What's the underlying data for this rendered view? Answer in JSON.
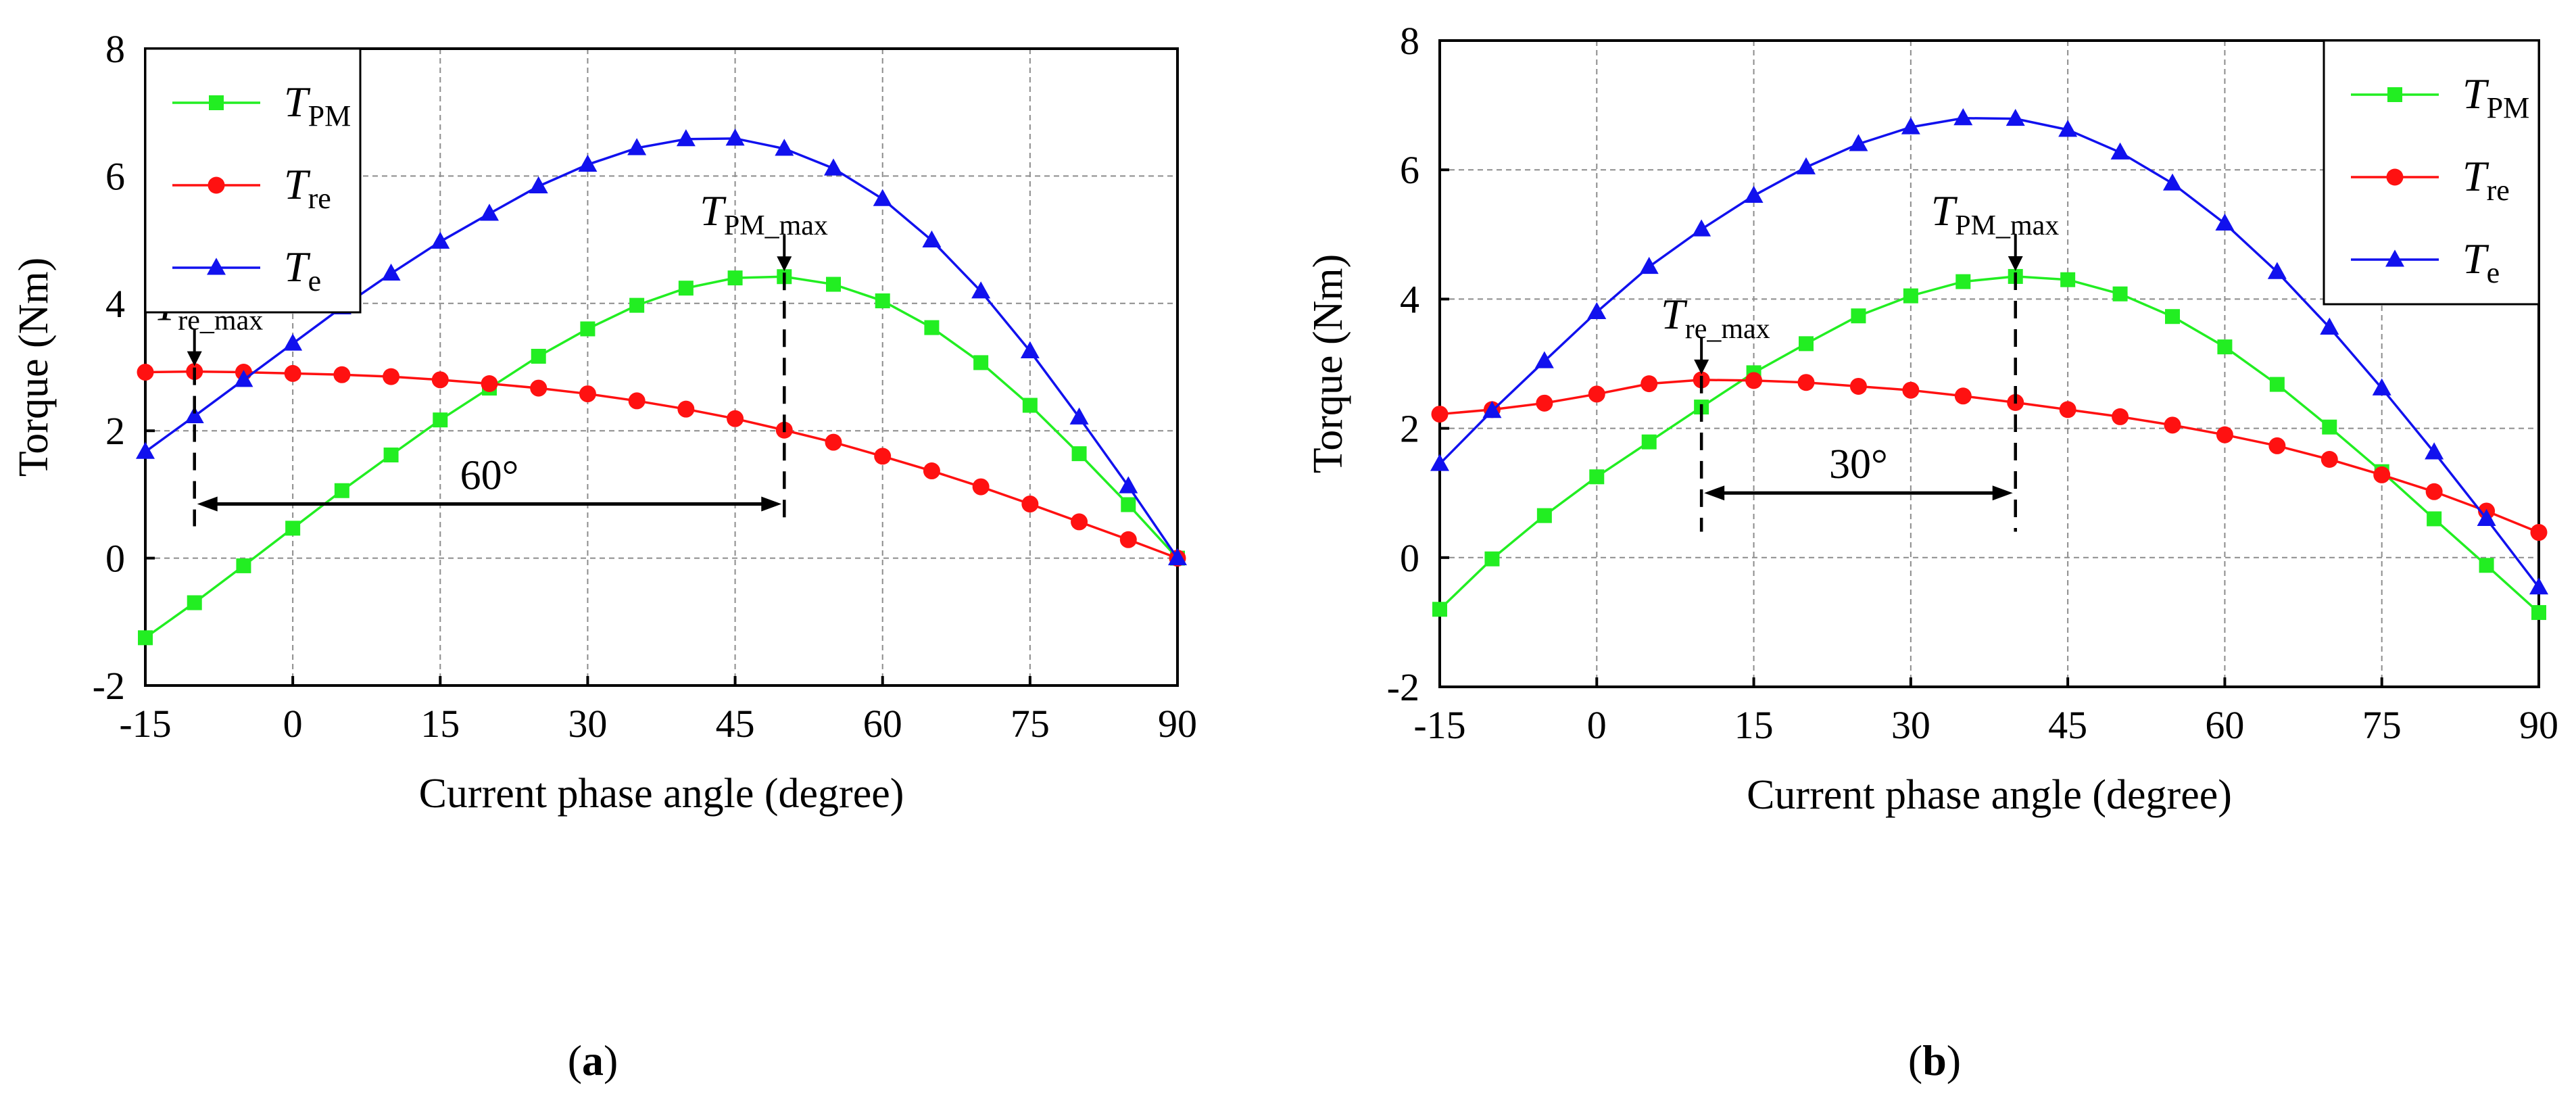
{
  "chart_data": [
    {
      "id": "a",
      "type": "line",
      "caption_prefix": "(",
      "caption_letter": "a",
      "caption_suffix": ")",
      "xlabel": "Current phase angle (degree)",
      "ylabel": "Torque (Nm)",
      "xlim": [
        -15,
        90
      ],
      "ylim": [
        -2,
        8
      ],
      "xticks": [
        -15,
        0,
        15,
        30,
        45,
        60,
        75,
        90
      ],
      "yticks": [
        -2,
        0,
        2,
        4,
        6,
        8
      ],
      "legend_position": "top-left",
      "x": [
        -15,
        -10,
        -5,
        0,
        5,
        10,
        15,
        20,
        25,
        30,
        35,
        40,
        45,
        50,
        55,
        60,
        65,
        70,
        75,
        80,
        85,
        90
      ],
      "series": [
        {
          "key": "pm",
          "name_main": "T",
          "name_sub": "PM",
          "color": "#22ee22",
          "marker": "square",
          "values": [
            -1.25,
            -0.7,
            -0.12,
            0.47,
            1.06,
            1.62,
            2.17,
            2.67,
            3.17,
            3.6,
            3.97,
            4.24,
            4.4,
            4.42,
            4.3,
            4.04,
            3.62,
            3.07,
            2.4,
            1.64,
            0.84,
            0.0
          ]
        },
        {
          "key": "re",
          "name_main": "T",
          "name_sub": "re",
          "color": "#ff1111",
          "marker": "circle",
          "values": [
            2.92,
            2.93,
            2.92,
            2.9,
            2.88,
            2.85,
            2.8,
            2.74,
            2.67,
            2.58,
            2.47,
            2.34,
            2.19,
            2.01,
            1.82,
            1.6,
            1.37,
            1.12,
            0.85,
            0.57,
            0.29,
            0.0
          ]
        },
        {
          "key": "e",
          "name_main": "T",
          "name_sub": "e",
          "color": "#1111ee",
          "marker": "triangle",
          "values": [
            1.67,
            2.23,
            2.8,
            3.37,
            3.94,
            4.47,
            4.97,
            5.41,
            5.84,
            6.18,
            6.44,
            6.58,
            6.59,
            6.43,
            6.12,
            5.64,
            4.99,
            4.19,
            3.25,
            2.21,
            1.13,
            0.0
          ]
        }
      ],
      "annotations": [
        {
          "key": "tre",
          "main": "T",
          "sub": "re_max",
          "x": -10,
          "y": 2.93
        },
        {
          "key": "tpm",
          "main": "T",
          "sub": "PM_max",
          "x": 50,
          "y": 4.42
        }
      ],
      "span": {
        "x1": -10,
        "x2": 50,
        "y": 0.85,
        "label": "60°",
        "line_bottom": 0.5
      }
    },
    {
      "id": "b",
      "type": "line",
      "caption_prefix": "(",
      "caption_letter": "b",
      "caption_suffix": ")",
      "xlabel": "Current phase angle (degree)",
      "ylabel": "Torque (Nm)",
      "xlim": [
        -15,
        90
      ],
      "ylim": [
        -2,
        8
      ],
      "xticks": [
        -15,
        0,
        15,
        30,
        45,
        60,
        75,
        90
      ],
      "yticks": [
        -2,
        0,
        2,
        4,
        6,
        8
      ],
      "legend_position": "top-right",
      "x": [
        -15,
        -10,
        -5,
        0,
        5,
        10,
        15,
        20,
        25,
        30,
        35,
        40,
        45,
        50,
        55,
        60,
        65,
        70,
        75,
        80,
        85,
        90
      ],
      "series": [
        {
          "key": "pm",
          "name_main": "T",
          "name_sub": "PM",
          "color": "#22ee22",
          "marker": "square",
          "values": [
            -0.8,
            -0.02,
            0.65,
            1.25,
            1.79,
            2.33,
            2.86,
            3.31,
            3.74,
            4.05,
            4.27,
            4.35,
            4.3,
            4.08,
            3.73,
            3.26,
            2.68,
            2.02,
            1.33,
            0.6,
            -0.12,
            -0.85
          ]
        },
        {
          "key": "re",
          "name_main": "T",
          "name_sub": "re",
          "color": "#ff1111",
          "marker": "circle",
          "values": [
            2.22,
            2.29,
            2.39,
            2.53,
            2.69,
            2.75,
            2.74,
            2.71,
            2.65,
            2.59,
            2.5,
            2.4,
            2.29,
            2.18,
            2.05,
            1.9,
            1.73,
            1.52,
            1.28,
            1.02,
            0.72,
            0.39
          ]
        },
        {
          "key": "e",
          "name_main": "T",
          "name_sub": "e",
          "color": "#1111ee",
          "marker": "triangle",
          "values": [
            1.45,
            2.27,
            3.04,
            3.8,
            4.5,
            5.08,
            5.6,
            6.04,
            6.4,
            6.66,
            6.8,
            6.79,
            6.62,
            6.27,
            5.79,
            5.17,
            4.42,
            3.56,
            2.62,
            1.63,
            0.6,
            -0.46
          ]
        }
      ],
      "annotations": [
        {
          "key": "tre",
          "main": "T",
          "sub": "re_max",
          "x": 10,
          "y": 2.75
        },
        {
          "key": "tpm",
          "main": "T",
          "sub": "PM_max",
          "x": 40,
          "y": 4.35
        }
      ],
      "span": {
        "x1": 10,
        "x2": 40,
        "y": 1.0,
        "label": "30°",
        "line_bottom": 0.4
      }
    }
  ]
}
